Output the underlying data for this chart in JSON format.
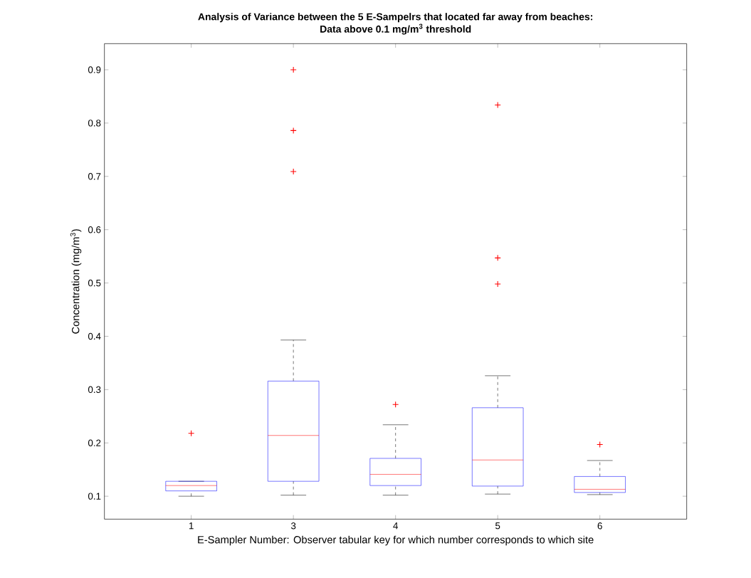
{
  "chart_data": {
    "type": "box",
    "title": "Analysis of Variance between the 5 E-Sampelrs that located far away from beaches:",
    "subtitle": "Data above 0.1 mg/m$^{3}$ threshold",
    "xlabel": "E-Sampler Number: Observer tabular key for which number corresponds to which site",
    "ylabel": "Concentration (mg/m$^{3}$)",
    "categories": [
      "1",
      "3",
      "4",
      "5",
      "6"
    ],
    "color": "#0000ff",
    "marker": "cross",
    "ylim": [
      0.057,
      0.949
    ],
    "yticks": [
      0.1,
      0.2,
      0.3,
      0.4,
      0.5,
      0.6,
      0.7,
      0.8,
      0.9
    ],
    "boxes": [
      {
        "low": 0.1,
        "q1": 0.11,
        "median": 0.12,
        "q3": 0.128,
        "high": 0.128,
        "outliers": [
          0.218
        ]
      },
      {
        "low": 0.102,
        "q1": 0.128,
        "median": 0.214,
        "q3": 0.316,
        "high": 0.393,
        "outliers": [
          0.709,
          0.786,
          0.9
        ]
      },
      {
        "low": 0.102,
        "q1": 0.12,
        "median": 0.141,
        "q3": 0.171,
        "high": 0.234,
        "outliers": [
          0.272
        ]
      },
      {
        "low": 0.104,
        "q1": 0.119,
        "median": 0.168,
        "q3": 0.266,
        "high": 0.326,
        "outliers": [
          0.498,
          0.547,
          0.834
        ]
      },
      {
        "low": 0.103,
        "q1": 0.107,
        "median": 0.113,
        "q3": 0.137,
        "high": 0.167,
        "outliers": [
          0.197
        ]
      }
    ]
  }
}
